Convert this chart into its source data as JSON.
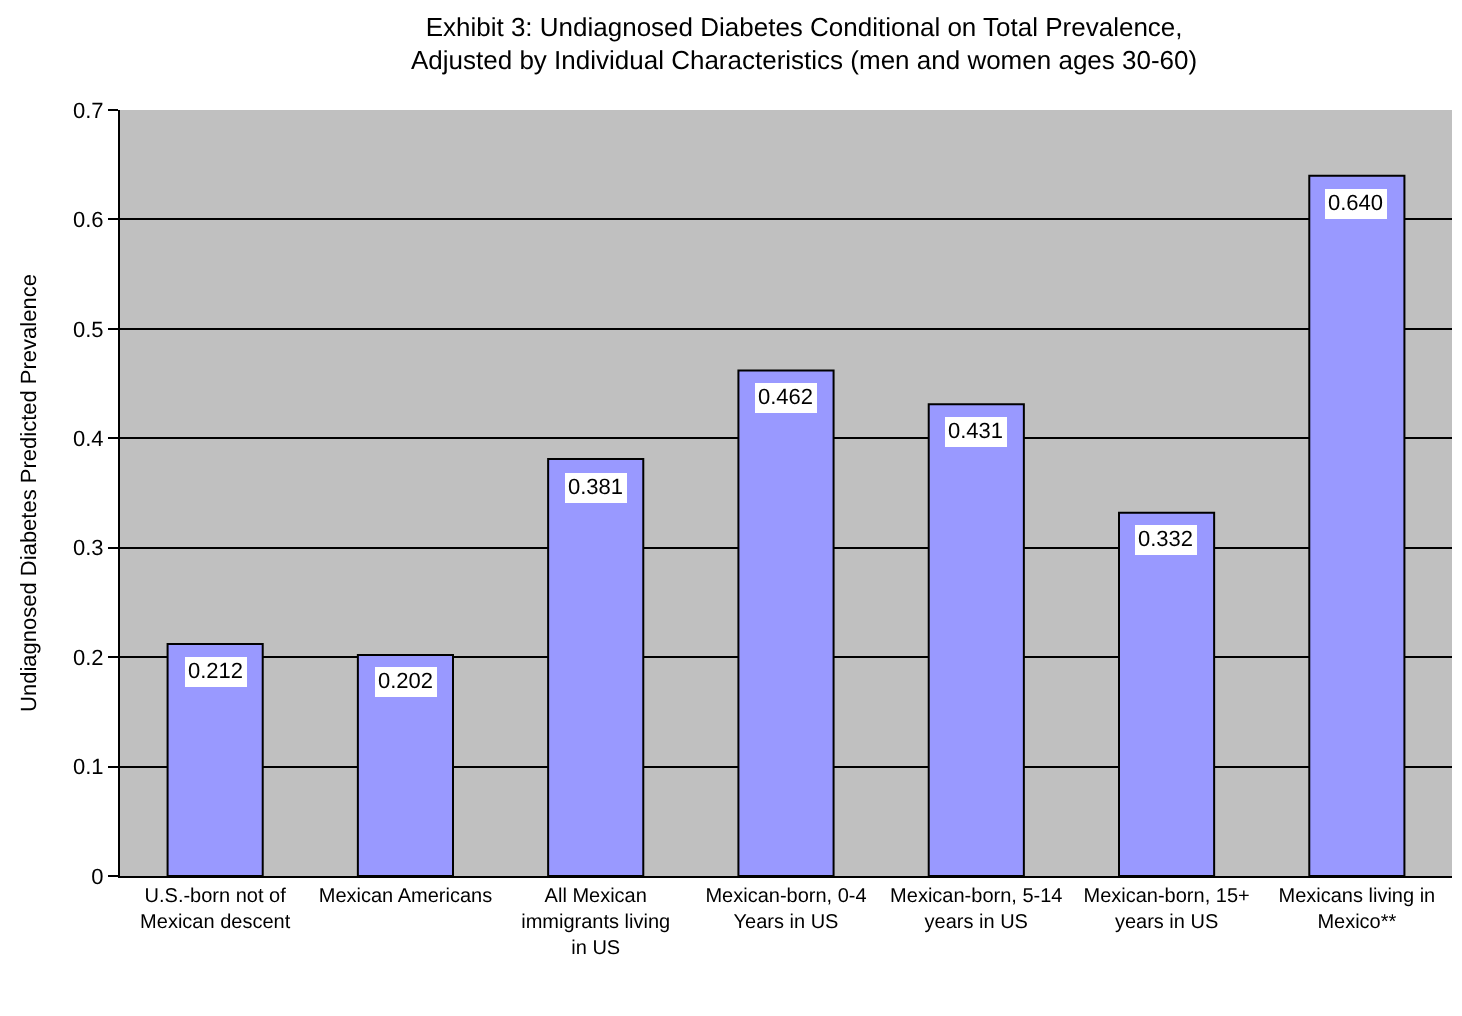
{
  "chart_data": {
    "type": "bar",
    "title": "Exhibit 3: Undiagnosed Diabetes Conditional on Total Prevalence,\nAdjusted by Individual Characteristics (men and women ages 30-60)",
    "ylabel": "Undiagnosed Diabetes Predicted Prevalence",
    "categories": [
      "U.S.-born not of Mexican descent",
      "Mexican Americans",
      "All Mexican immigrants living in US",
      "Mexican-born, 0-4 Years in US",
      "Mexican-born, 5-14 years in US",
      "Mexican-born, 15+ years in US",
      "Mexicans living in Mexico**"
    ],
    "values": [
      0.212,
      0.202,
      0.381,
      0.462,
      0.431,
      0.332,
      0.64
    ],
    "value_labels": [
      "0.212",
      "0.202",
      "0.381",
      "0.462",
      "0.431",
      "0.332",
      "0.640"
    ],
    "color": "#9999ff",
    "ylim": [
      0,
      0.7
    ],
    "yticks": [
      0,
      0.1,
      0.2,
      0.3,
      0.4,
      0.5,
      0.6,
      0.7
    ],
    "grid": "y"
  }
}
